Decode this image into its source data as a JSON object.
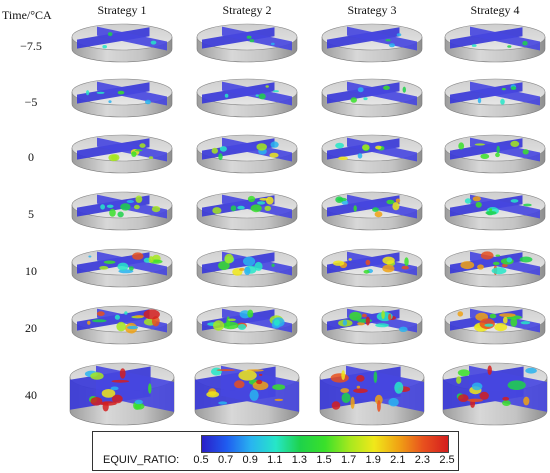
{
  "header": {
    "time_label": "Time/°CA",
    "strategies": [
      "Strategy 1",
      "Strategy 2",
      "Strategy 3",
      "Strategy 4"
    ]
  },
  "rows": [
    {
      "label": "−7.5"
    },
    {
      "label": "−5"
    },
    {
      "label": "0"
    },
    {
      "label": "5"
    },
    {
      "label": "10"
    },
    {
      "label": "20"
    },
    {
      "label": "40"
    }
  ],
  "colorbar": {
    "title": "EQUIV_RATIO:",
    "ticks": [
      "0.5",
      "0.7",
      "0.9",
      "1.1",
      "1.3",
      "1.5",
      "1.7",
      "1.9",
      "2.1",
      "2.3",
      "2.5"
    ],
    "colors": [
      "#2a1fc8",
      "#1f5cf0",
      "#29b4f0",
      "#26e6c8",
      "#1ed24a",
      "#3ae02a",
      "#a6e81e",
      "#f0e81a",
      "#f0a214",
      "#e8501e",
      "#d41e1e"
    ]
  }
}
